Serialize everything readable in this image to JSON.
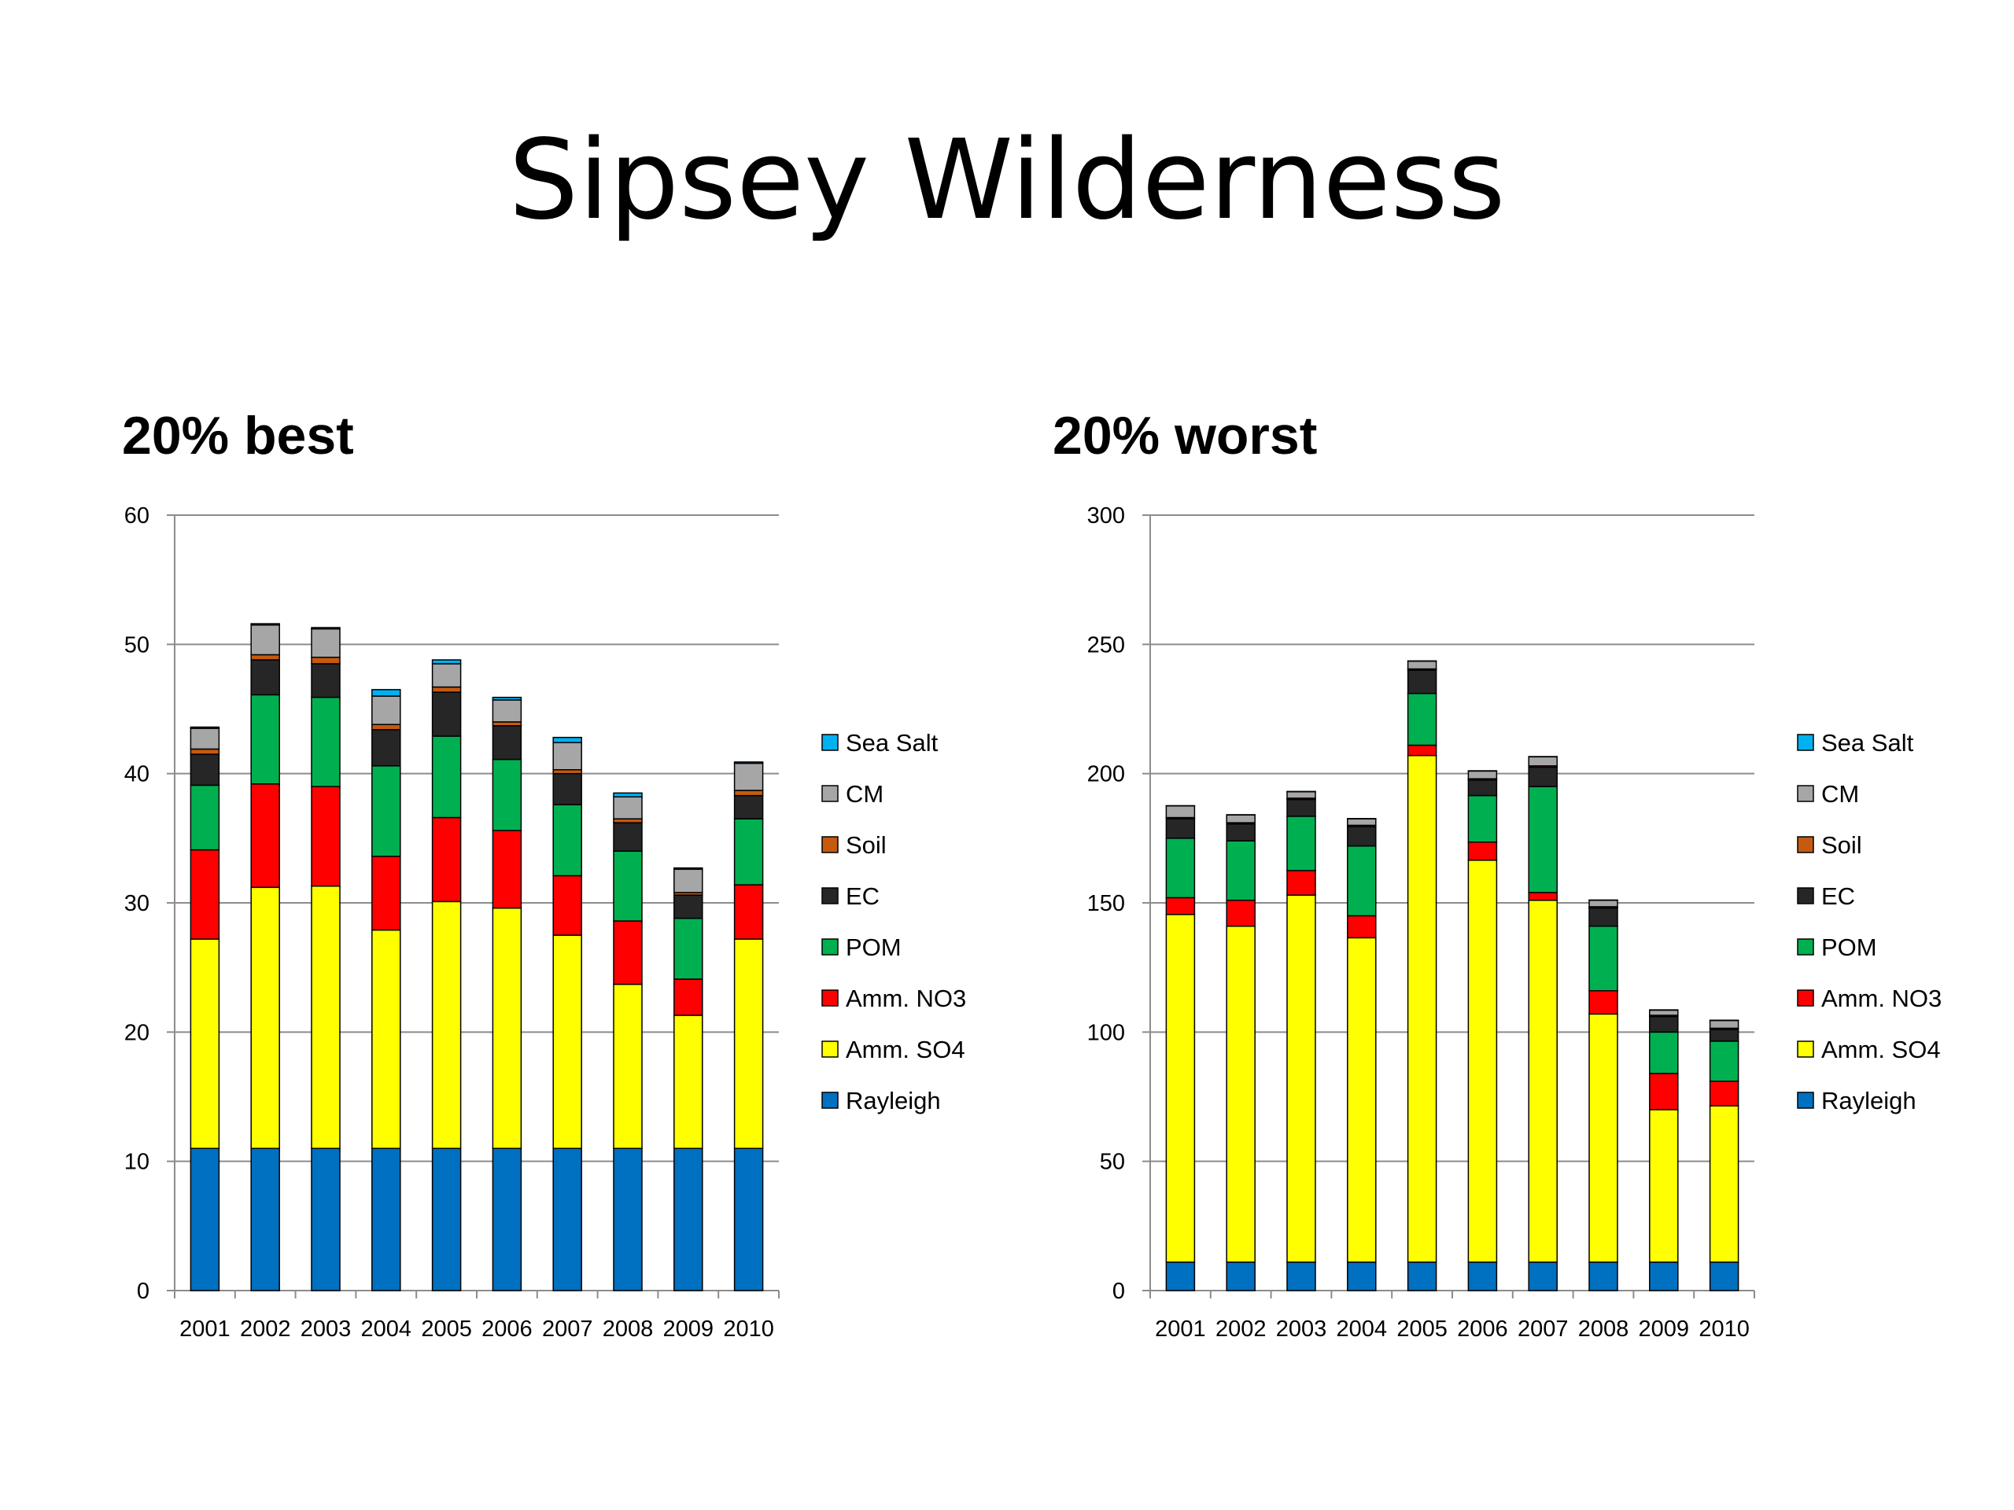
{
  "slide": {
    "title": "Sipsey Wilderness"
  },
  "legend_order": [
    "Sea Salt",
    "CM",
    "Soil",
    "EC",
    "POM",
    "Amm. NO3",
    "Amm. SO4",
    "Rayleigh"
  ],
  "component_colors": {
    "Rayleigh": "#0070C0",
    "Amm. SO4": "#FFFF00",
    "Amm. NO3": "#FF0000",
    "POM": "#00B050",
    "EC": "#262626",
    "Soil": "#C55A11",
    "CM": "#A6A6A6",
    "Sea Salt": "#00B0F0"
  },
  "chart_data": [
    {
      "type": "bar",
      "stacked": true,
      "title": "20% best",
      "categories": [
        "2001",
        "2002",
        "2003",
        "2004",
        "2005",
        "2006",
        "2007",
        "2008",
        "2009",
        "2010"
      ],
      "ylim": [
        0,
        60
      ],
      "yticks": [
        0,
        10,
        20,
        30,
        40,
        50,
        60
      ],
      "grid": true,
      "legend_position": "right",
      "series": [
        {
          "name": "Rayleigh",
          "values": [
            11,
            11,
            11,
            11,
            11,
            11,
            11,
            11,
            11,
            11
          ]
        },
        {
          "name": "Amm. SO4",
          "values": [
            16.2,
            20.2,
            20.3,
            16.9,
            19.1,
            18.6,
            16.5,
            12.7,
            10.3,
            16.2
          ]
        },
        {
          "name": "Amm. NO3",
          "values": [
            6.9,
            8.0,
            7.7,
            5.7,
            6.5,
            6.0,
            4.6,
            4.9,
            2.8,
            4.2
          ]
        },
        {
          "name": "POM",
          "values": [
            5.0,
            6.9,
            6.9,
            7.0,
            6.3,
            5.5,
            5.5,
            5.4,
            4.7,
            5.1
          ]
        },
        {
          "name": "EC",
          "values": [
            2.4,
            2.7,
            2.6,
            2.8,
            3.4,
            2.6,
            2.4,
            2.2,
            1.8,
            1.8
          ]
        },
        {
          "name": "Soil",
          "values": [
            0.4,
            0.4,
            0.5,
            0.4,
            0.4,
            0.3,
            0.3,
            0.3,
            0.2,
            0.4
          ]
        },
        {
          "name": "CM",
          "values": [
            1.6,
            2.3,
            2.2,
            2.2,
            1.8,
            1.7,
            2.1,
            1.7,
            1.8,
            2.1
          ]
        },
        {
          "name": "Sea Salt",
          "values": [
            0.1,
            0.1,
            0.1,
            0.5,
            0.3,
            0.2,
            0.4,
            0.3,
            0.1,
            0.1
          ]
        }
      ]
    },
    {
      "type": "bar",
      "stacked": true,
      "title": "20% worst",
      "categories": [
        "2001",
        "2002",
        "2003",
        "2004",
        "2005",
        "2006",
        "2007",
        "2008",
        "2009",
        "2010"
      ],
      "ylim": [
        0,
        300
      ],
      "yticks": [
        0,
        50,
        100,
        150,
        200,
        250,
        300
      ],
      "grid": true,
      "legend_position": "right",
      "series": [
        {
          "name": "Rayleigh",
          "values": [
            11,
            11,
            11,
            11,
            11,
            11,
            11,
            11,
            11,
            11
          ]
        },
        {
          "name": "Amm. SO4",
          "values": [
            134.5,
            130,
            142,
            125.5,
            196,
            155.5,
            140,
            96,
            59,
            60.5
          ]
        },
        {
          "name": "Amm. NO3",
          "values": [
            6.5,
            10,
            9.5,
            8.5,
            4,
            7,
            3,
            9,
            14,
            9.5
          ]
        },
        {
          "name": "POM",
          "values": [
            23,
            23,
            21,
            27,
            20,
            18,
            41,
            25,
            16,
            15.5
          ]
        },
        {
          "name": "EC",
          "values": [
            7.5,
            6.5,
            6.5,
            7.5,
            9,
            6,
            7.5,
            7,
            6,
            4.5
          ]
        },
        {
          "name": "Soil",
          "values": [
            0.5,
            0.5,
            0.5,
            0.5,
            0.5,
            0.5,
            0.5,
            0.5,
            0.5,
            0.5
          ]
        },
        {
          "name": "CM",
          "values": [
            4.5,
            3,
            2.5,
            2.5,
            3,
            3,
            3.5,
            2.5,
            2,
            3
          ]
        },
        {
          "name": "Sea Salt",
          "values": [
            0.1,
            0.1,
            0.1,
            0.1,
            0.1,
            0.1,
            0.1,
            0.1,
            0.1,
            0.1
          ]
        }
      ]
    }
  ]
}
